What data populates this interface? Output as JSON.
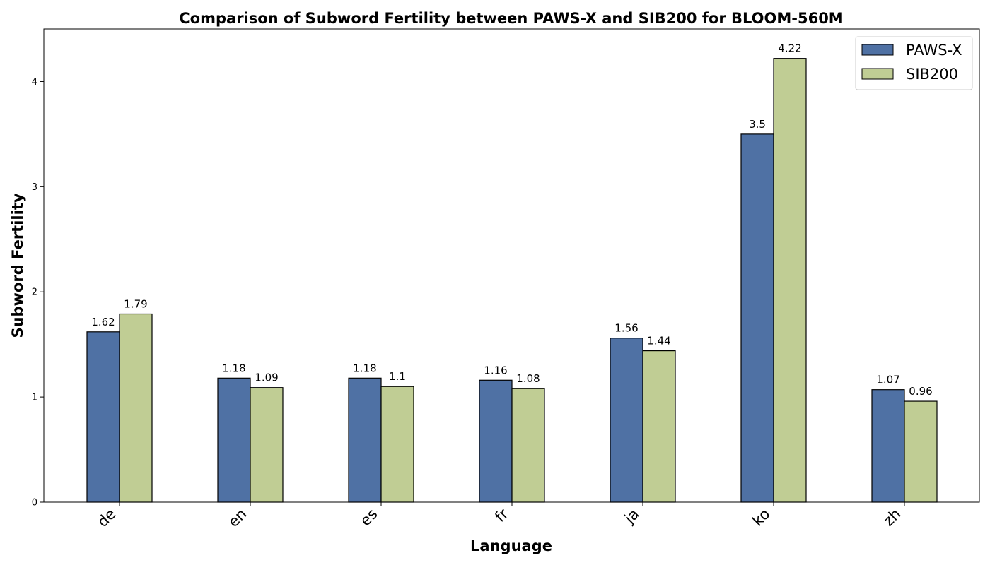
{
  "chart_data": {
    "type": "bar",
    "title": "Comparison of Subword Fertility between PAWS-X and SIB200 for BLOOM-560M",
    "xlabel": "Language",
    "ylabel": "Subword Fertility",
    "categories": [
      "de",
      "en",
      "es",
      "fr",
      "ja",
      "ko",
      "zh"
    ],
    "series": [
      {
        "name": "PAWS-X",
        "color": "#4f71a4",
        "values": [
          1.62,
          1.18,
          1.18,
          1.16,
          1.56,
          3.5,
          1.07
        ],
        "labels": [
          "1.62",
          "1.18",
          "1.18",
          "1.16",
          "1.56",
          "3.5",
          "1.07"
        ]
      },
      {
        "name": "SIB200",
        "color": "#c0cd94",
        "values": [
          1.79,
          1.09,
          1.1,
          1.08,
          1.44,
          4.22,
          0.96
        ],
        "labels": [
          "1.79",
          "1.09",
          "1.1",
          "1.08",
          "1.44",
          "4.22",
          "0.96"
        ]
      }
    ],
    "ylim": [
      0,
      4.5
    ],
    "yticks": [
      0,
      1,
      2,
      3,
      4
    ],
    "ytick_labels": [
      "0",
      "1",
      "2",
      "3",
      "4"
    ],
    "grid": false,
    "legend": "top-right"
  }
}
